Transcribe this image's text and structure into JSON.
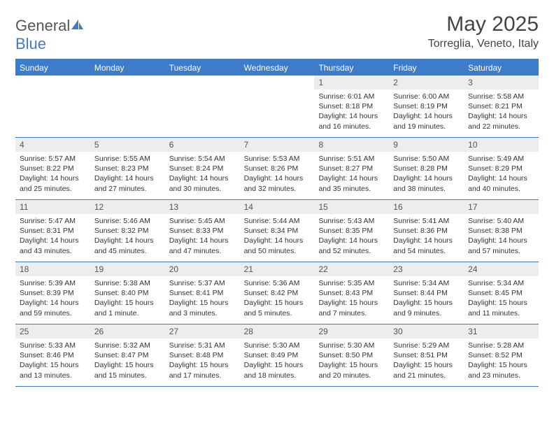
{
  "brand": {
    "part1": "General",
    "part2": "Blue"
  },
  "title": "May 2025",
  "location": "Torreglia, Veneto, Italy",
  "colors": {
    "accent": "#3d7cc9",
    "daynum_bg": "#ededed",
    "text": "#333333"
  },
  "dow": [
    "Sunday",
    "Monday",
    "Tuesday",
    "Wednesday",
    "Thursday",
    "Friday",
    "Saturday"
  ],
  "weeks": [
    [
      {
        "empty": true
      },
      {
        "empty": true
      },
      {
        "empty": true
      },
      {
        "empty": true
      },
      {
        "n": "1",
        "sunrise": "Sunrise: 6:01 AM",
        "sunset": "Sunset: 8:18 PM",
        "day1": "Daylight: 14 hours",
        "day2": "and 16 minutes."
      },
      {
        "n": "2",
        "sunrise": "Sunrise: 6:00 AM",
        "sunset": "Sunset: 8:19 PM",
        "day1": "Daylight: 14 hours",
        "day2": "and 19 minutes."
      },
      {
        "n": "3",
        "sunrise": "Sunrise: 5:58 AM",
        "sunset": "Sunset: 8:21 PM",
        "day1": "Daylight: 14 hours",
        "day2": "and 22 minutes."
      }
    ],
    [
      {
        "n": "4",
        "sunrise": "Sunrise: 5:57 AM",
        "sunset": "Sunset: 8:22 PM",
        "day1": "Daylight: 14 hours",
        "day2": "and 25 minutes."
      },
      {
        "n": "5",
        "sunrise": "Sunrise: 5:55 AM",
        "sunset": "Sunset: 8:23 PM",
        "day1": "Daylight: 14 hours",
        "day2": "and 27 minutes."
      },
      {
        "n": "6",
        "sunrise": "Sunrise: 5:54 AM",
        "sunset": "Sunset: 8:24 PM",
        "day1": "Daylight: 14 hours",
        "day2": "and 30 minutes."
      },
      {
        "n": "7",
        "sunrise": "Sunrise: 5:53 AM",
        "sunset": "Sunset: 8:26 PM",
        "day1": "Daylight: 14 hours",
        "day2": "and 32 minutes."
      },
      {
        "n": "8",
        "sunrise": "Sunrise: 5:51 AM",
        "sunset": "Sunset: 8:27 PM",
        "day1": "Daylight: 14 hours",
        "day2": "and 35 minutes."
      },
      {
        "n": "9",
        "sunrise": "Sunrise: 5:50 AM",
        "sunset": "Sunset: 8:28 PM",
        "day1": "Daylight: 14 hours",
        "day2": "and 38 minutes."
      },
      {
        "n": "10",
        "sunrise": "Sunrise: 5:49 AM",
        "sunset": "Sunset: 8:29 PM",
        "day1": "Daylight: 14 hours",
        "day2": "and 40 minutes."
      }
    ],
    [
      {
        "n": "11",
        "sunrise": "Sunrise: 5:47 AM",
        "sunset": "Sunset: 8:31 PM",
        "day1": "Daylight: 14 hours",
        "day2": "and 43 minutes."
      },
      {
        "n": "12",
        "sunrise": "Sunrise: 5:46 AM",
        "sunset": "Sunset: 8:32 PM",
        "day1": "Daylight: 14 hours",
        "day2": "and 45 minutes."
      },
      {
        "n": "13",
        "sunrise": "Sunrise: 5:45 AM",
        "sunset": "Sunset: 8:33 PM",
        "day1": "Daylight: 14 hours",
        "day2": "and 47 minutes."
      },
      {
        "n": "14",
        "sunrise": "Sunrise: 5:44 AM",
        "sunset": "Sunset: 8:34 PM",
        "day1": "Daylight: 14 hours",
        "day2": "and 50 minutes."
      },
      {
        "n": "15",
        "sunrise": "Sunrise: 5:43 AM",
        "sunset": "Sunset: 8:35 PM",
        "day1": "Daylight: 14 hours",
        "day2": "and 52 minutes."
      },
      {
        "n": "16",
        "sunrise": "Sunrise: 5:41 AM",
        "sunset": "Sunset: 8:36 PM",
        "day1": "Daylight: 14 hours",
        "day2": "and 54 minutes."
      },
      {
        "n": "17",
        "sunrise": "Sunrise: 5:40 AM",
        "sunset": "Sunset: 8:38 PM",
        "day1": "Daylight: 14 hours",
        "day2": "and 57 minutes."
      }
    ],
    [
      {
        "n": "18",
        "sunrise": "Sunrise: 5:39 AM",
        "sunset": "Sunset: 8:39 PM",
        "day1": "Daylight: 14 hours",
        "day2": "and 59 minutes."
      },
      {
        "n": "19",
        "sunrise": "Sunrise: 5:38 AM",
        "sunset": "Sunset: 8:40 PM",
        "day1": "Daylight: 15 hours",
        "day2": "and 1 minute."
      },
      {
        "n": "20",
        "sunrise": "Sunrise: 5:37 AM",
        "sunset": "Sunset: 8:41 PM",
        "day1": "Daylight: 15 hours",
        "day2": "and 3 minutes."
      },
      {
        "n": "21",
        "sunrise": "Sunrise: 5:36 AM",
        "sunset": "Sunset: 8:42 PM",
        "day1": "Daylight: 15 hours",
        "day2": "and 5 minutes."
      },
      {
        "n": "22",
        "sunrise": "Sunrise: 5:35 AM",
        "sunset": "Sunset: 8:43 PM",
        "day1": "Daylight: 15 hours",
        "day2": "and 7 minutes."
      },
      {
        "n": "23",
        "sunrise": "Sunrise: 5:34 AM",
        "sunset": "Sunset: 8:44 PM",
        "day1": "Daylight: 15 hours",
        "day2": "and 9 minutes."
      },
      {
        "n": "24",
        "sunrise": "Sunrise: 5:34 AM",
        "sunset": "Sunset: 8:45 PM",
        "day1": "Daylight: 15 hours",
        "day2": "and 11 minutes."
      }
    ],
    [
      {
        "n": "25",
        "sunrise": "Sunrise: 5:33 AM",
        "sunset": "Sunset: 8:46 PM",
        "day1": "Daylight: 15 hours",
        "day2": "and 13 minutes."
      },
      {
        "n": "26",
        "sunrise": "Sunrise: 5:32 AM",
        "sunset": "Sunset: 8:47 PM",
        "day1": "Daylight: 15 hours",
        "day2": "and 15 minutes."
      },
      {
        "n": "27",
        "sunrise": "Sunrise: 5:31 AM",
        "sunset": "Sunset: 8:48 PM",
        "day1": "Daylight: 15 hours",
        "day2": "and 17 minutes."
      },
      {
        "n": "28",
        "sunrise": "Sunrise: 5:30 AM",
        "sunset": "Sunset: 8:49 PM",
        "day1": "Daylight: 15 hours",
        "day2": "and 18 minutes."
      },
      {
        "n": "29",
        "sunrise": "Sunrise: 5:30 AM",
        "sunset": "Sunset: 8:50 PM",
        "day1": "Daylight: 15 hours",
        "day2": "and 20 minutes."
      },
      {
        "n": "30",
        "sunrise": "Sunrise: 5:29 AM",
        "sunset": "Sunset: 8:51 PM",
        "day1": "Daylight: 15 hours",
        "day2": "and 21 minutes."
      },
      {
        "n": "31",
        "sunrise": "Sunrise: 5:28 AM",
        "sunset": "Sunset: 8:52 PM",
        "day1": "Daylight: 15 hours",
        "day2": "and 23 minutes."
      }
    ]
  ]
}
